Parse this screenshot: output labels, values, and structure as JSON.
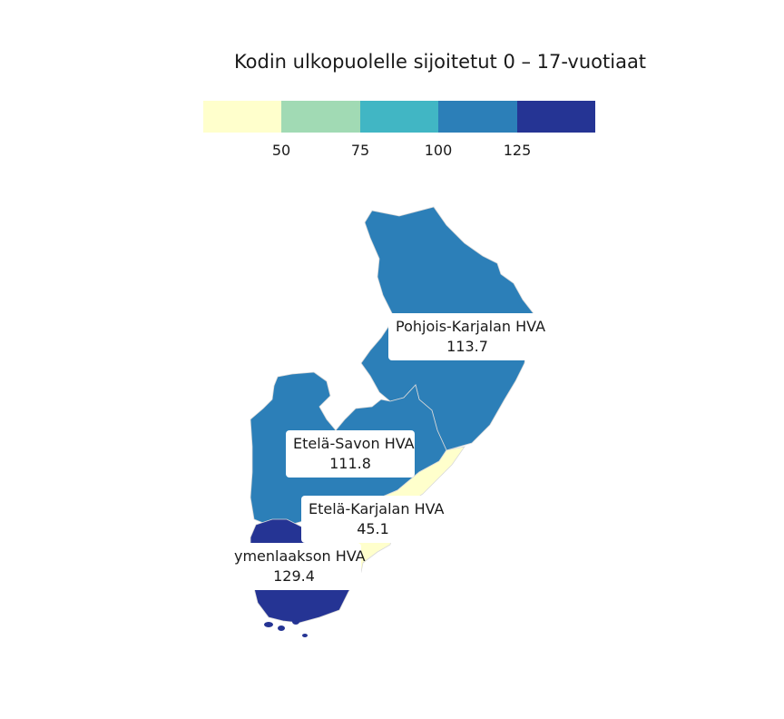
{
  "title": "Kodin ulkopuolelle sijoitetut 0 – 17-vuotiaat",
  "legend": {
    "bins": [
      {
        "color": "#ffffcc"
      },
      {
        "color": "#a1dab4"
      },
      {
        "color": "#41b6c4"
      },
      {
        "color": "#2c7fb8"
      },
      {
        "color": "#253494"
      }
    ],
    "ticks": [
      "50",
      "75",
      "100",
      "125"
    ]
  },
  "regions": [
    {
      "name": "Pohjois-Karjalan HVA",
      "value": "113.7",
      "color": "#2c7fb8"
    },
    {
      "name": "Etelä-Savon HVA",
      "value": "111.8",
      "color": "#2c7fb8"
    },
    {
      "name": "Etelä-Karjalan HVA",
      "value": "45.1",
      "color": "#ffffcc"
    },
    {
      "name": "ymenlaakson HVA",
      "value": "129.4",
      "color": "#253494"
    }
  ]
}
